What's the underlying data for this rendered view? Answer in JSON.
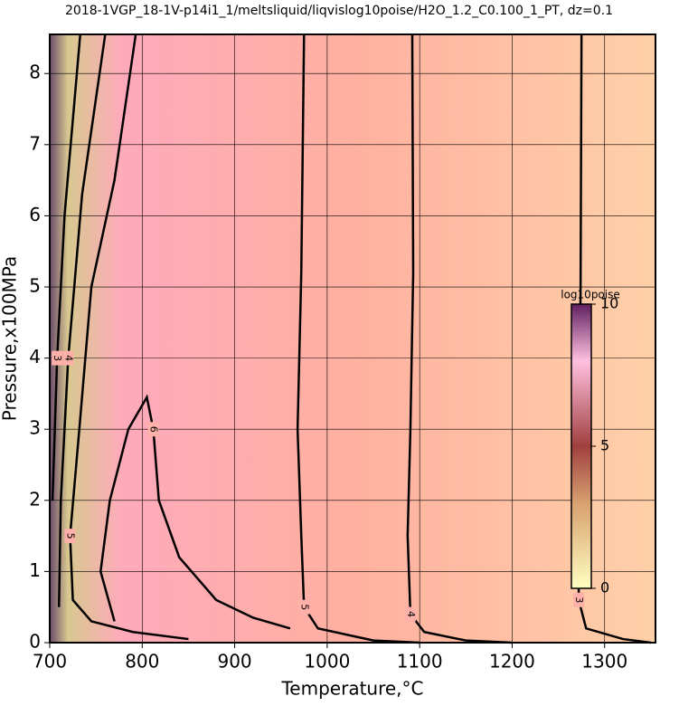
{
  "chart_data": {
    "type": "contour",
    "title": "2018-1VGP_18-1V-p14i1_1/meltsliquid/liqvislog10poise/H2O_1.2_C0.100_1_PT, dz=0.1",
    "x_label": "Temperature,°C",
    "y_label": "Pressure,x100MPa",
    "xlim": [
      700,
      1355
    ],
    "ylim": [
      0,
      8.55
    ],
    "xticks": [
      700,
      800,
      900,
      1000,
      1100,
      1200,
      1300
    ],
    "yticks": [
      0,
      1,
      2,
      3,
      4,
      5,
      6,
      7,
      8
    ],
    "grid": true,
    "line_color": "#000000",
    "contours": [
      {
        "level": 3,
        "x": [
          1275,
          1274,
          1272,
          1272,
          1280,
          1320,
          1350
        ],
        "y": [
          8.55,
          5,
          2,
          0.6,
          0.2,
          0.05,
          0
        ]
      },
      {
        "level": 4,
        "x": [
          1092,
          1093,
          1090,
          1087,
          1090,
          1105,
          1150,
          1200
        ],
        "y": [
          8.55,
          5.2,
          3,
          1.5,
          0.4,
          0.15,
          0.03,
          0
        ]
      },
      {
        "level": 5,
        "x": [
          975,
          972,
          968,
          972,
          975,
          990,
          1050,
          1100
        ],
        "y": [
          8.55,
          5.2,
          3,
          1.5,
          0.5,
          0.2,
          0.03,
          0
        ]
      },
      {
        "level": 5,
        "x": [
          793,
          770,
          745,
          732,
          722,
          725,
          745,
          790,
          850
        ],
        "y": [
          8.55,
          6.5,
          5,
          3,
          1.5,
          0.6,
          0.3,
          0.15,
          0.05
        ]
      },
      {
        "level": 6,
        "x": [
          770,
          755,
          765,
          785,
          805,
          812,
          818,
          840,
          880,
          920,
          960
        ],
        "y": [
          0.3,
          1,
          2,
          3,
          3.45,
          3,
          2,
          1.2,
          0.6,
          0.35,
          0.2
        ]
      },
      {
        "level": 4,
        "x": [
          760,
          735,
          720,
          712,
          710
        ],
        "y": [
          8.55,
          6.3,
          4,
          2,
          0.5
        ]
      },
      {
        "level": 3,
        "x": [
          733,
          716,
          708,
          703
        ],
        "y": [
          8.55,
          6,
          4,
          2
        ]
      }
    ],
    "colorbar": {
      "label": "log10poise",
      "lim": [
        0,
        10
      ],
      "ticks": [
        0,
        5,
        10
      ]
    }
  }
}
